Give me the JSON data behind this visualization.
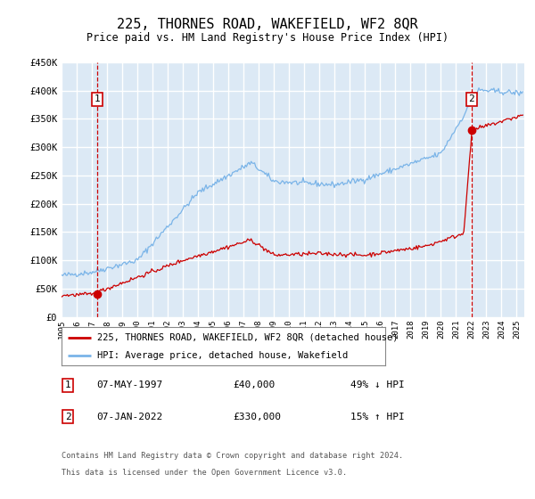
{
  "title": "225, THORNES ROAD, WAKEFIELD, WF2 8QR",
  "subtitle": "Price paid vs. HM Land Registry's House Price Index (HPI)",
  "title_fontsize": 11,
  "subtitle_fontsize": 9,
  "plot_bg_color": "#dce9f5",
  "grid_color": "#ffffff",
  "hpi_color": "#7ab4e8",
  "price_color": "#cc0000",
  "yticks": [
    0,
    50000,
    100000,
    150000,
    200000,
    250000,
    300000,
    350000,
    400000,
    450000
  ],
  "ytick_labels": [
    "£0",
    "£50K",
    "£100K",
    "£150K",
    "£200K",
    "£250K",
    "£300K",
    "£350K",
    "£400K",
    "£450K"
  ],
  "xmin": 1995.0,
  "xmax": 2025.5,
  "ymin": 0,
  "ymax": 450000,
  "sale1_x": 1997.35,
  "sale1_y": 40000,
  "sale1_label": "1",
  "sale1_date": "07-MAY-1997",
  "sale1_price": "£40,000",
  "sale1_hpi": "49% ↓ HPI",
  "sale2_x": 2022.02,
  "sale2_y": 330000,
  "sale2_label": "2",
  "sale2_date": "07-JAN-2022",
  "sale2_price": "£330,000",
  "sale2_hpi": "15% ↑ HPI",
  "legend_line1": "225, THORNES ROAD, WAKEFIELD, WF2 8QR (detached house)",
  "legend_line2": "HPI: Average price, detached house, Wakefield",
  "footer1": "Contains HM Land Registry data © Crown copyright and database right 2024.",
  "footer2": "This data is licensed under the Open Government Licence v3.0."
}
